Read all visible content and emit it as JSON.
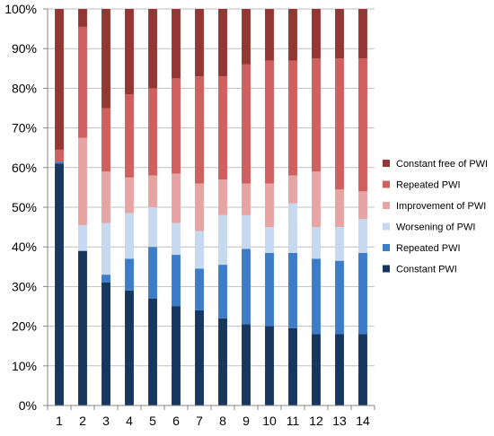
{
  "chart_data": {
    "type": "bar",
    "stacked": true,
    "normalized": true,
    "title": "",
    "xlabel": "",
    "ylabel": "",
    "ylim": [
      0,
      100
    ],
    "y_ticks": [
      "0%",
      "10%",
      "20%",
      "30%",
      "40%",
      "50%",
      "60%",
      "70%",
      "80%",
      "90%",
      "100%"
    ],
    "grid": "horizontal",
    "legend_position": "right",
    "categories": [
      "1",
      "2",
      "3",
      "4",
      "5",
      "6",
      "7",
      "8",
      "9",
      "10",
      "11",
      "12",
      "13",
      "14"
    ],
    "series": [
      {
        "name": "Constant PWI",
        "color": "#17375e",
        "values": [
          61,
          39,
          31,
          29,
          27,
          25,
          24,
          22,
          20.5,
          20,
          19.5,
          18,
          18,
          18
        ]
      },
      {
        "name": "Repeated PWI",
        "color": "#3d7cc8",
        "values": [
          0.5,
          0,
          2,
          8,
          13,
          13,
          10.5,
          13.5,
          19,
          18.5,
          19,
          19,
          18.5,
          20.5
        ]
      },
      {
        "name": "Worsening of PWI",
        "color": "#c6d9f1",
        "values": [
          0,
          6.5,
          13,
          11.5,
          10,
          8,
          9.5,
          12.5,
          8.5,
          6.5,
          12.5,
          8,
          8.5,
          8.5
        ]
      },
      {
        "name": "Improvement of PWI",
        "color": "#e6a5a3",
        "values": [
          0,
          22,
          13,
          9,
          8,
          12.5,
          12,
          9,
          8,
          11,
          7,
          14,
          9.5,
          7
        ]
      },
      {
        "name": "Repeated PWI",
        "color": "#d0605e",
        "values": [
          3,
          28,
          16,
          21,
          22,
          24,
          27,
          26,
          30,
          31,
          29,
          28.5,
          33,
          33.5
        ]
      },
      {
        "name": "Constant free of PWI",
        "color": "#943634",
        "values": [
          35.5,
          4.5,
          25,
          21.5,
          20,
          17.5,
          17,
          17,
          14,
          13,
          13,
          12.5,
          12.5,
          12.5
        ]
      }
    ]
  }
}
